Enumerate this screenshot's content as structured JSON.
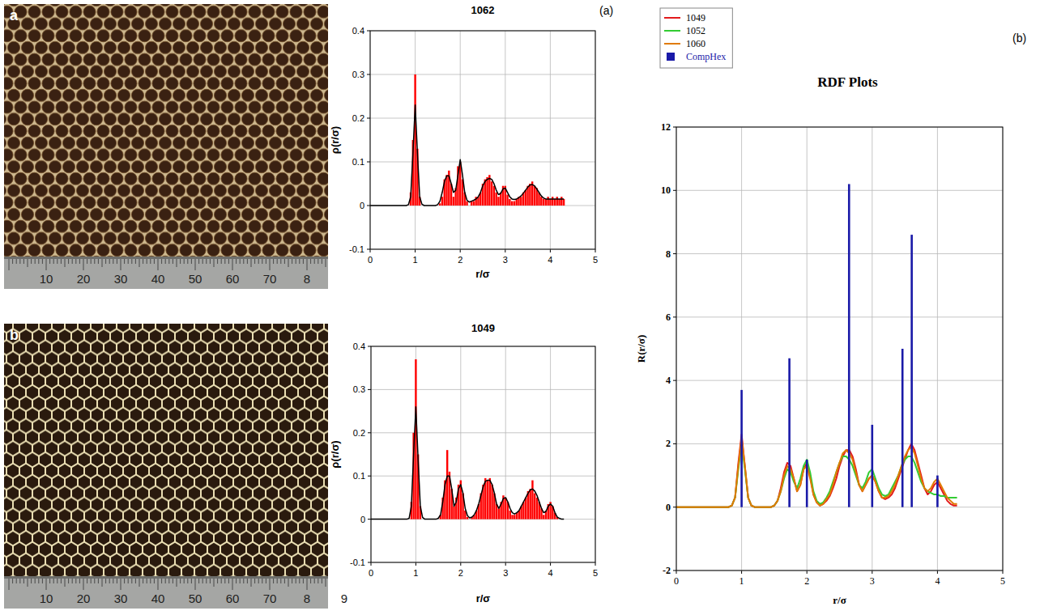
{
  "chart_data": [
    {
      "type": "line",
      "title": "1062",
      "x_label": "r/σ",
      "y_label": "ρ(r/σ)",
      "xlim": [
        0,
        5
      ],
      "ylim": [
        -0.1,
        0.4
      ],
      "xticks": [
        0,
        1,
        2,
        3,
        4,
        5
      ],
      "yticks": [
        -0.1,
        0,
        0.1,
        0.2,
        0.3,
        0.4
      ],
      "grid": true,
      "x": [
        0,
        0.5,
        0.8,
        0.85,
        0.9,
        0.95,
        1,
        1.05,
        1.1,
        1.15,
        1.2,
        1.25,
        1.3,
        1.35,
        1.4,
        1.45,
        1.5,
        1.55,
        1.6,
        1.65,
        1.7,
        1.75,
        1.8,
        1.85,
        1.9,
        1.95,
        2,
        2.05,
        2.1,
        2.15,
        2.2,
        2.25,
        2.3,
        2.35,
        2.4,
        2.45,
        2.5,
        2.55,
        2.6,
        2.65,
        2.7,
        2.75,
        2.8,
        2.85,
        2.9,
        2.95,
        3,
        3.05,
        3.1,
        3.15,
        3.2,
        3.25,
        3.3,
        3.35,
        3.4,
        3.45,
        3.5,
        3.55,
        3.6,
        3.65,
        3.7,
        3.75,
        3.8,
        3.85,
        3.9,
        3.95,
        4,
        4.05,
        4.1,
        4.15,
        4.2,
        4.25,
        4.3
      ],
      "series": [
        {
          "type": "bar",
          "color": "#ff0000",
          "values": [
            0,
            0,
            0,
            0,
            0.03,
            0.15,
            0.3,
            0.13,
            0.02,
            0,
            0,
            0,
            0,
            0,
            0,
            0,
            0,
            0.005,
            0.02,
            0.06,
            0.07,
            0.08,
            0.05,
            0.02,
            0.04,
            0.09,
            0.1,
            0.06,
            0.03,
            0.01,
            0,
            0.01,
            0.01,
            0.02,
            0.02,
            0.03,
            0.05,
            0.06,
            0.065,
            0.07,
            0.055,
            0.045,
            0.03,
            0.02,
            0.03,
            0.045,
            0.045,
            0.025,
            0.015,
            0.01,
            0.01,
            0.015,
            0.02,
            0.02,
            0.03,
            0.035,
            0.045,
            0.05,
            0.055,
            0.045,
            0.04,
            0.03,
            0.02,
            0.015,
            0.015,
            0.02,
            0.015,
            0.02,
            0.015,
            0.02,
            0.015,
            0.02,
            0.015
          ]
        },
        {
          "type": "line",
          "color": "#000000",
          "values": [
            0,
            0,
            0,
            0.002,
            0.02,
            0.12,
            0.23,
            0.12,
            0.02,
            0.003,
            0,
            0,
            0,
            0,
            0,
            0,
            0.002,
            0.01,
            0.03,
            0.055,
            0.068,
            0.068,
            0.05,
            0.03,
            0.035,
            0.07,
            0.105,
            0.07,
            0.03,
            0.012,
            0.008,
            0.01,
            0.012,
            0.015,
            0.02,
            0.03,
            0.045,
            0.055,
            0.06,
            0.062,
            0.06,
            0.05,
            0.035,
            0.025,
            0.028,
            0.038,
            0.04,
            0.03,
            0.02,
            0.015,
            0.014,
            0.015,
            0.018,
            0.022,
            0.028,
            0.035,
            0.042,
            0.047,
            0.048,
            0.045,
            0.038,
            0.03,
            0.022,
            0.017,
            0.015,
            0.015,
            0.015,
            0.015,
            0.015,
            0.015,
            0.015,
            0.015,
            0.015
          ]
        }
      ]
    },
    {
      "type": "line",
      "title": "1049",
      "x_label": "r/σ",
      "y_label": "ρ(r/σ)",
      "xlim": [
        0,
        5
      ],
      "ylim": [
        -0.1,
        0.4
      ],
      "xticks": [
        0,
        1,
        2,
        3,
        4,
        5
      ],
      "yticks": [
        -0.1,
        0,
        0.1,
        0.2,
        0.3,
        0.4
      ],
      "grid": true,
      "x": [
        0,
        0.5,
        0.8,
        0.85,
        0.9,
        0.95,
        1,
        1.05,
        1.1,
        1.15,
        1.2,
        1.25,
        1.3,
        1.35,
        1.4,
        1.45,
        1.5,
        1.55,
        1.6,
        1.65,
        1.7,
        1.75,
        1.8,
        1.85,
        1.9,
        1.95,
        2,
        2.05,
        2.1,
        2.15,
        2.2,
        2.25,
        2.3,
        2.35,
        2.4,
        2.45,
        2.5,
        2.55,
        2.6,
        2.65,
        2.7,
        2.75,
        2.8,
        2.85,
        2.9,
        2.95,
        3,
        3.05,
        3.1,
        3.15,
        3.2,
        3.25,
        3.3,
        3.35,
        3.4,
        3.45,
        3.5,
        3.55,
        3.6,
        3.65,
        3.7,
        3.75,
        3.8,
        3.85,
        3.9,
        3.95,
        4,
        4.05,
        4.1,
        4.15,
        4.2,
        4.25,
        4.3
      ],
      "series": [
        {
          "type": "bar",
          "color": "#ff0000",
          "values": [
            0,
            0,
            0,
            0,
            0.04,
            0.2,
            0.37,
            0.15,
            0.03,
            0,
            0,
            0,
            0,
            0,
            0,
            0,
            0,
            0.01,
            0.05,
            0.09,
            0.16,
            0.11,
            0.07,
            0.03,
            0.05,
            0.08,
            0.09,
            0.06,
            0.02,
            0.005,
            0,
            0.005,
            0.01,
            0.02,
            0.035,
            0.06,
            0.08,
            0.095,
            0.09,
            0.095,
            0.08,
            0.06,
            0.035,
            0.025,
            0.04,
            0.055,
            0.05,
            0.04,
            0.02,
            0.01,
            0.01,
            0.015,
            0.02,
            0.03,
            0.04,
            0.05,
            0.065,
            0.07,
            0.09,
            0.06,
            0.05,
            0.04,
            0.025,
            0.01,
            0.02,
            0.035,
            0.04,
            0.03,
            0.015,
            0.005,
            0,
            0,
            0
          ]
        },
        {
          "type": "line",
          "color": "#000000",
          "values": [
            0,
            0,
            0,
            0.002,
            0.03,
            0.15,
            0.26,
            0.14,
            0.03,
            0.004,
            0,
            0,
            0,
            0,
            0,
            0,
            0.002,
            0.01,
            0.04,
            0.08,
            0.1,
            0.1,
            0.07,
            0.03,
            0.04,
            0.07,
            0.08,
            0.06,
            0.025,
            0.008,
            0.003,
            0.005,
            0.01,
            0.02,
            0.035,
            0.055,
            0.075,
            0.088,
            0.09,
            0.09,
            0.08,
            0.06,
            0.035,
            0.025,
            0.035,
            0.048,
            0.05,
            0.04,
            0.025,
            0.015,
            0.012,
            0.015,
            0.02,
            0.03,
            0.04,
            0.05,
            0.06,
            0.068,
            0.07,
            0.065,
            0.055,
            0.04,
            0.025,
            0.015,
            0.018,
            0.03,
            0.035,
            0.03,
            0.015,
            0.005,
            0.002,
            0,
            0
          ]
        }
      ]
    },
    {
      "type": "line",
      "title": "RDF Plots",
      "x_label": "r/σ",
      "y_label": "R(r/σ)",
      "xlim": [
        0,
        5
      ],
      "ylim": [
        -2,
        12
      ],
      "xticks": [
        0,
        1,
        2,
        3,
        4,
        5
      ],
      "yticks": [
        -2,
        0,
        2,
        4,
        6,
        8,
        10,
        12
      ],
      "grid": true,
      "legend": "top-left",
      "x": [
        0,
        0.5,
        0.8,
        0.85,
        0.9,
        0.95,
        1,
        1.05,
        1.1,
        1.15,
        1.2,
        1.25,
        1.3,
        1.35,
        1.4,
        1.45,
        1.5,
        1.55,
        1.6,
        1.65,
        1.7,
        1.75,
        1.8,
        1.85,
        1.9,
        1.95,
        2,
        2.05,
        2.1,
        2.15,
        2.2,
        2.25,
        2.3,
        2.35,
        2.4,
        2.45,
        2.5,
        2.55,
        2.6,
        2.65,
        2.7,
        2.75,
        2.8,
        2.85,
        2.9,
        2.95,
        3,
        3.05,
        3.1,
        3.15,
        3.2,
        3.25,
        3.3,
        3.35,
        3.4,
        3.45,
        3.5,
        3.55,
        3.6,
        3.65,
        3.7,
        3.75,
        3.8,
        3.85,
        3.9,
        3.95,
        4,
        4.05,
        4.1,
        4.15,
        4.2,
        4.25,
        4.3
      ],
      "series": [
        {
          "name": "1049",
          "type": "line",
          "color": "#e31a1c",
          "values": [
            0,
            0,
            0,
            0.05,
            0.3,
            1.4,
            2.3,
            1.3,
            0.3,
            0.05,
            0,
            0,
            0,
            0,
            0,
            0,
            0.05,
            0.2,
            0.6,
            1.1,
            1.4,
            1.3,
            0.9,
            0.5,
            0.7,
            1.2,
            1.4,
            1.0,
            0.4,
            0.15,
            0.05,
            0.1,
            0.2,
            0.35,
            0.6,
            0.9,
            1.3,
            1.6,
            1.8,
            1.8,
            1.6,
            1.2,
            0.7,
            0.5,
            0.7,
            0.9,
            1.0,
            0.8,
            0.5,
            0.3,
            0.25,
            0.3,
            0.4,
            0.6,
            0.9,
            1.2,
            1.5,
            1.8,
            2.0,
            1.8,
            1.4,
            1.0,
            0.6,
            0.4,
            0.5,
            0.7,
            0.8,
            0.6,
            0.4,
            0.2,
            0.1,
            0.05,
            0.05
          ]
        },
        {
          "name": "1052",
          "type": "line",
          "color": "#33cc33",
          "values": [
            0,
            0,
            0,
            0.05,
            0.3,
            1.2,
            2.0,
            1.2,
            0.3,
            0.05,
            0,
            0,
            0,
            0,
            0,
            0,
            0.05,
            0.2,
            0.5,
            0.9,
            1.2,
            1.1,
            0.8,
            0.6,
            0.9,
            1.3,
            1.5,
            1.1,
            0.5,
            0.2,
            0.1,
            0.15,
            0.3,
            0.5,
            0.8,
            1.1,
            1.4,
            1.6,
            1.6,
            1.5,
            1.3,
            1.0,
            0.7,
            0.6,
            0.8,
            1.1,
            1.2,
            0.9,
            0.6,
            0.4,
            0.35,
            0.4,
            0.6,
            0.8,
            1.0,
            1.3,
            1.5,
            1.6,
            1.6,
            1.4,
            1.1,
            0.8,
            0.6,
            0.5,
            0.45,
            0.4,
            0.4,
            0.35,
            0.35,
            0.3,
            0.3,
            0.3,
            0.3
          ]
        },
        {
          "name": "1060",
          "type": "line",
          "color": "#e07b00",
          "values": [
            0,
            0,
            0,
            0.05,
            0.3,
            1.3,
            2.2,
            1.3,
            0.3,
            0.05,
            0,
            0,
            0,
            0,
            0,
            0,
            0.05,
            0.2,
            0.5,
            1.0,
            1.3,
            1.2,
            0.9,
            0.5,
            0.7,
            1.2,
            1.3,
            0.9,
            0.4,
            0.15,
            0.05,
            0.1,
            0.25,
            0.4,
            0.7,
            1.1,
            1.4,
            1.7,
            1.8,
            1.7,
            1.5,
            1.1,
            0.7,
            0.5,
            0.7,
            0.9,
            1.0,
            0.8,
            0.5,
            0.3,
            0.3,
            0.35,
            0.5,
            0.7,
            1.0,
            1.3,
            1.6,
            1.8,
            1.9,
            1.7,
            1.3,
            0.9,
            0.6,
            0.5,
            0.6,
            0.8,
            0.9,
            0.7,
            0.5,
            0.3,
            0.2,
            0.1,
            0.1
          ]
        },
        {
          "name": "CompHex",
          "type": "bar",
          "color": "#1a1aa8",
          "x": [
            1,
            1.732,
            2,
            2.646,
            3,
            3.464,
            3.606,
            4
          ],
          "values": [
            3.7,
            4.7,
            1.5,
            10.2,
            2.6,
            5.0,
            8.6,
            1.0
          ]
        }
      ]
    }
  ],
  "photos": [
    {
      "letter": "a",
      "ruler_labels": [
        "10",
        "20",
        "30",
        "40",
        "50",
        "60",
        "70",
        "8"
      ]
    },
    {
      "letter": "b",
      "ruler_labels": [
        "10",
        "20",
        "30",
        "40",
        "50",
        "60",
        "70",
        "8",
        "9"
      ]
    }
  ],
  "panel_labels": [
    "(a)",
    "(b)"
  ]
}
